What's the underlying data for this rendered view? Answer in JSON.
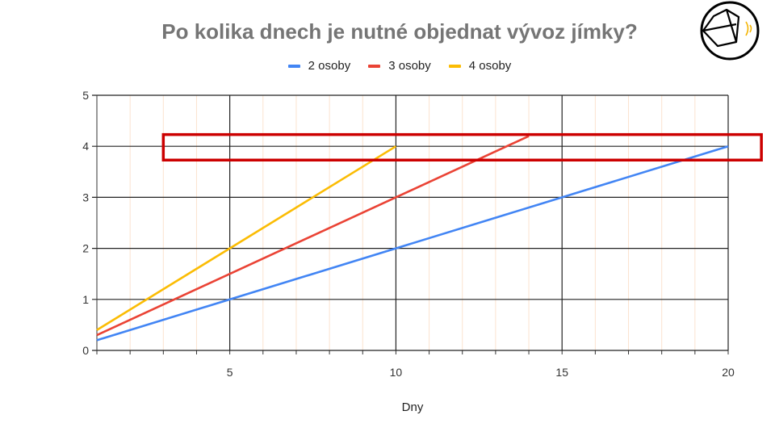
{
  "chart_data": {
    "type": "line",
    "title": "Po kolika dnech je nutné objednat vývoz jímky?",
    "xlabel": "Dny",
    "ylabel": "",
    "xlim": [
      1,
      20
    ],
    "ylim": [
      0,
      5
    ],
    "x_ticks": [
      5,
      10,
      15,
      20
    ],
    "y_ticks": [
      0,
      1,
      2,
      3,
      4,
      5
    ],
    "grid": true,
    "legend": "top",
    "series": [
      {
        "name": "2 osoby",
        "color": "#4285f4",
        "x": [
          1,
          20
        ],
        "y": [
          0.2,
          4.0
        ]
      },
      {
        "name": "3 osoby",
        "color": "#ea4335",
        "x": [
          1,
          14
        ],
        "y": [
          0.3,
          4.2
        ]
      },
      {
        "name": "4 osoby",
        "color": "#fbbc04",
        "x": [
          1,
          10
        ],
        "y": [
          0.4,
          4.0
        ]
      }
    ],
    "highlight": {
      "color": "#cc0000",
      "x_range": [
        3,
        21.0
      ],
      "y_range": [
        3.73,
        4.23
      ]
    }
  }
}
